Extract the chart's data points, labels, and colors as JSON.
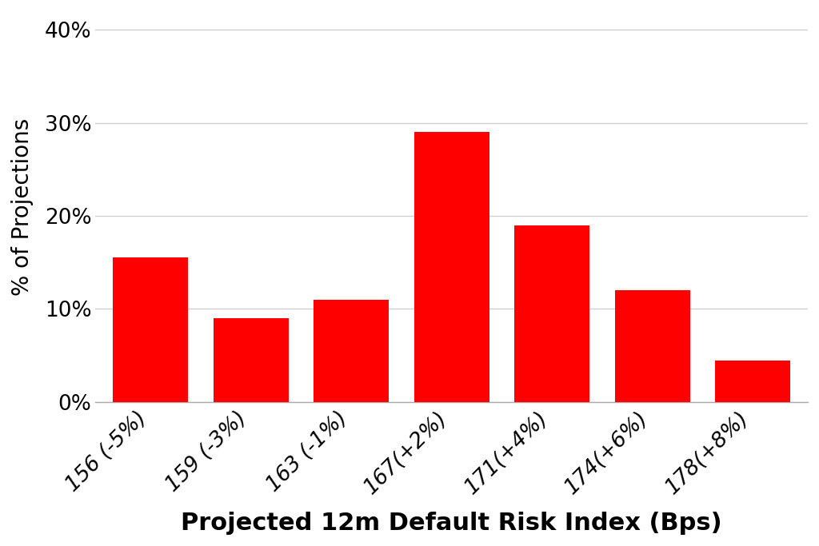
{
  "categories": [
    "156 (-5%)",
    "159 (-3%)",
    "163 (-1%)",
    "167(+2%)",
    "171(+4%)",
    "174(+6%)",
    "178(+8%)"
  ],
  "values": [
    15.5,
    9.0,
    11.0,
    29.0,
    19.0,
    12.0,
    4.5
  ],
  "bar_color": "#FF0000",
  "xlabel": "Projected 12m Default Risk Index (Bps)",
  "ylabel": "% of Projections",
  "ylim": [
    0,
    42
  ],
  "yticks": [
    0,
    10,
    20,
    30,
    40
  ],
  "ytick_labels": [
    "0%",
    "10%",
    "20%",
    "30%",
    "40%"
  ],
  "background_color": "#ffffff",
  "xlabel_fontsize": 22,
  "ylabel_fontsize": 20,
  "tick_fontsize": 19,
  "bar_width": 0.75,
  "grid_color": "#d0d0d0",
  "edge_color": "none",
  "spine_color": "#aaaaaa"
}
